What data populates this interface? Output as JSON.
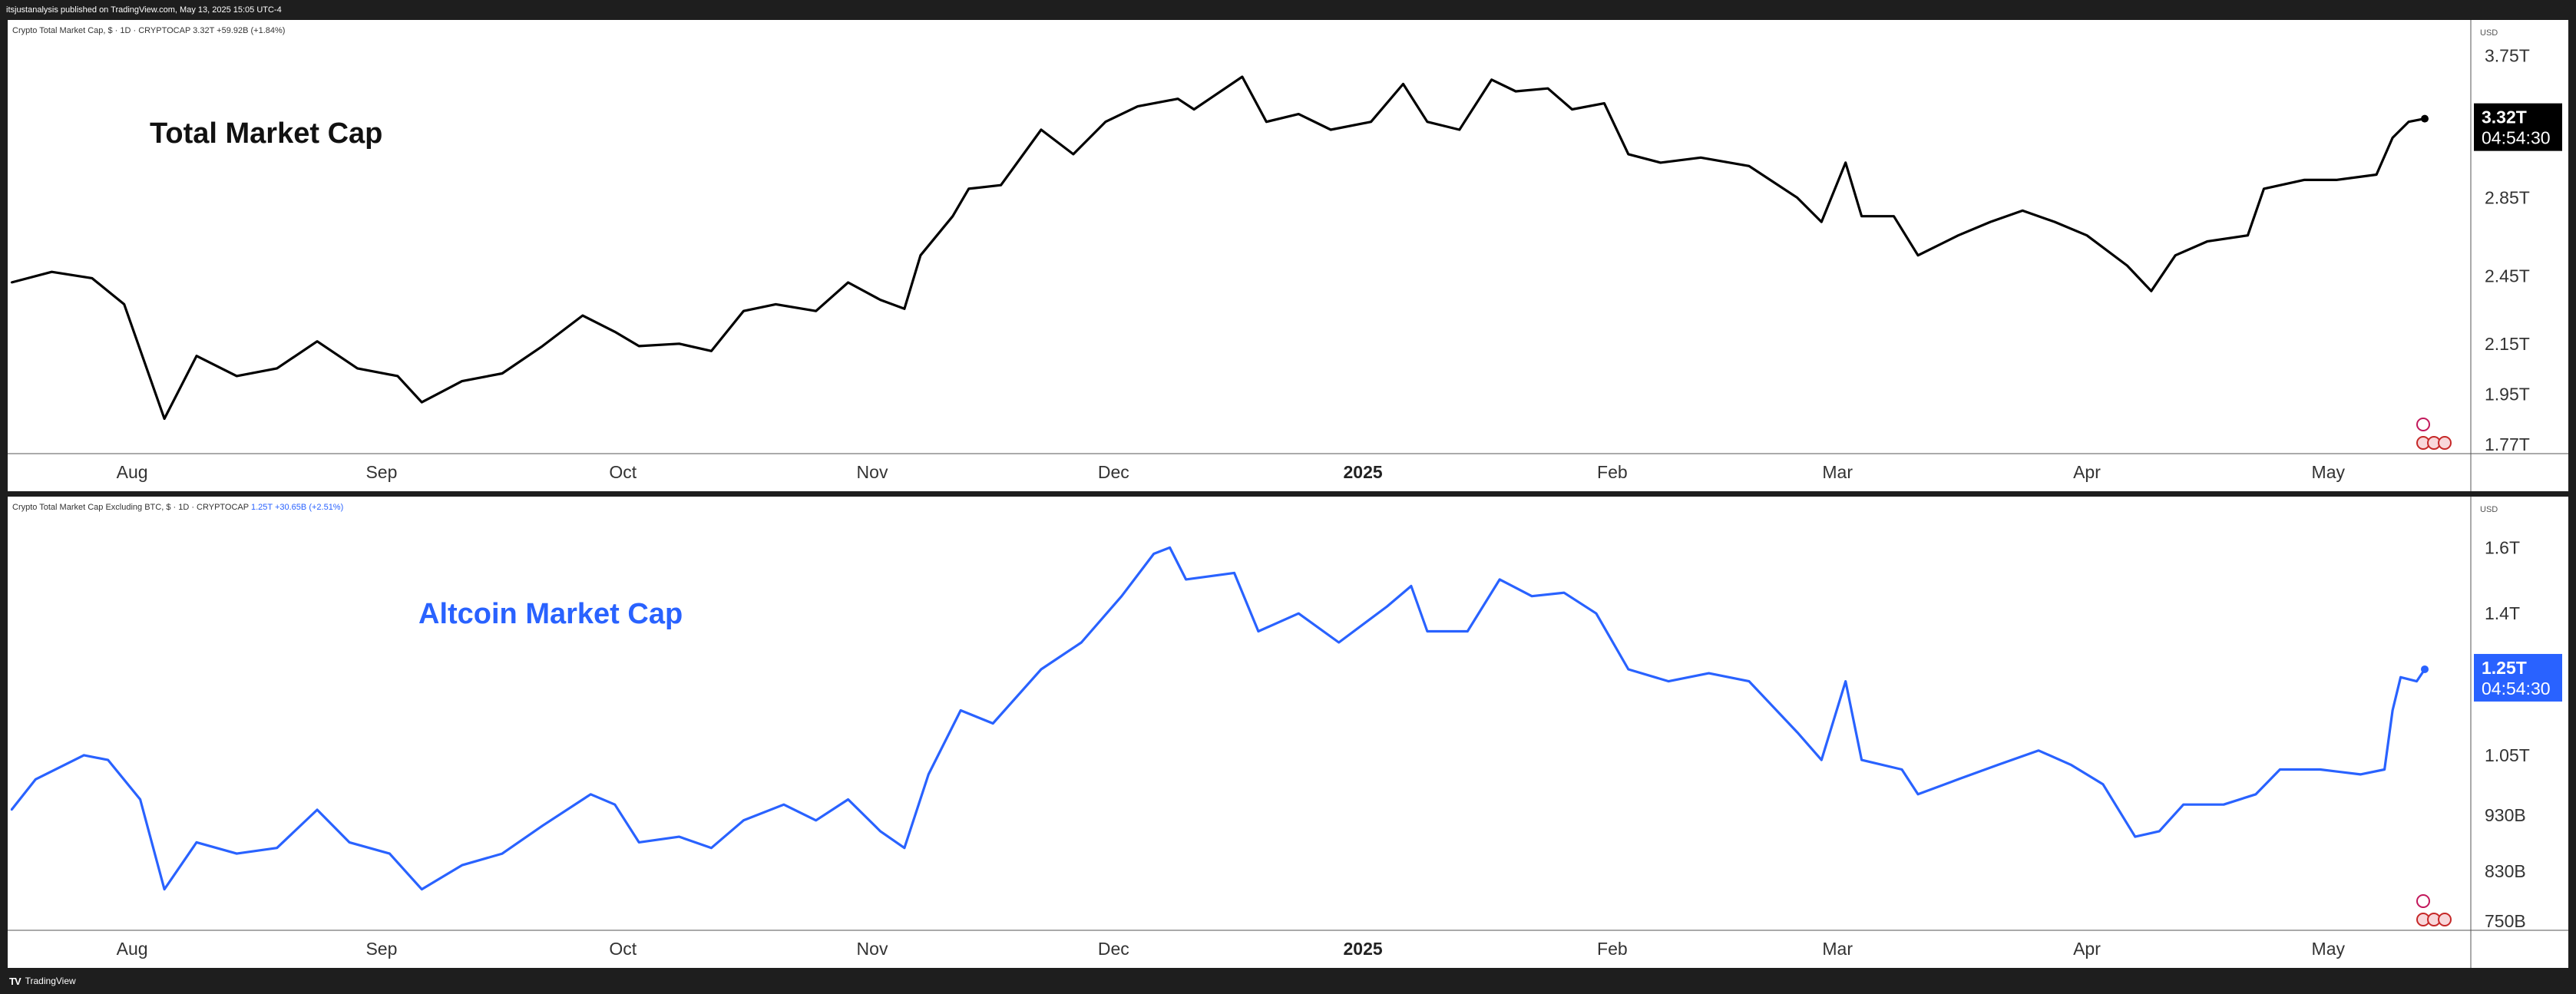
{
  "header": {
    "published_text": "itsjustanalysis published on TradingView.com, May 13, 2025 15:05 UTC-4"
  },
  "footer": {
    "brand": "TradingView",
    "logo_icon": "tradingview-logo-icon"
  },
  "colors": {
    "top_line": "#000000",
    "bottom_line": "#2962ff",
    "top_title": "#111111",
    "bottom_title": "#2962ff",
    "top_badge": "#000000",
    "bottom_badge": "#2962ff"
  },
  "panes": [
    {
      "legend": {
        "name": "Crypto Total Market Cap, $ · 1D · CRYPTOCAP",
        "value": "3.32T",
        "change": "+59.92B (+1.84%)"
      },
      "chart_title": "Total Market Cap",
      "currency": "USD",
      "badge": {
        "value": "3.32T",
        "countdown": "04:54:30"
      },
      "yaxis_ticks": [
        "3.75T",
        "2.85T",
        "2.45T",
        "2.15T",
        "1.95T",
        "1.77T"
      ],
      "xaxis_labels": [
        "Aug",
        "Sep",
        "Oct",
        "Nov",
        "Dec",
        "2025",
        "Feb",
        "Mar",
        "Apr",
        "May"
      ]
    },
    {
      "legend": {
        "name": "Crypto Total Market Cap Excluding BTC, $ · 1D · CRYPTOCAP",
        "value": "1.25T",
        "change": "+30.65B (+2.51%)"
      },
      "chart_title": "Altcoin Market Cap",
      "currency": "USD",
      "badge": {
        "value": "1.25T",
        "countdown": "04:54:30"
      },
      "yaxis_ticks": [
        "1.6T",
        "1.4T",
        "1.05T",
        "930B",
        "830B",
        "750B"
      ],
      "xaxis_labels": [
        "Aug",
        "Sep",
        "Oct",
        "Nov",
        "Dec",
        "2025",
        "Feb",
        "Mar",
        "Apr",
        "May"
      ]
    }
  ],
  "chart_data": [
    {
      "type": "line",
      "title": "Total Market Cap",
      "yscale": "log",
      "ylim": [
        1.77,
        3.9
      ],
      "x_start": "2024-07-17",
      "x_end": "2025-05-13",
      "xticks": [
        "2024-08-01",
        "2024-09-01",
        "2024-10-01",
        "2024-11-01",
        "2024-12-01",
        "2025-01-01",
        "2025-02-01",
        "2025-03-01",
        "2025-04-01",
        "2025-05-01"
      ],
      "yticks": [
        3.75,
        2.85,
        2.45,
        2.15,
        1.95,
        1.77
      ],
      "series": [
        {
          "color": "#000000",
          "points": [
            [
              "2024-07-17",
              2.42
            ],
            [
              "2024-07-22",
              2.47
            ],
            [
              "2024-07-27",
              2.44
            ],
            [
              "2024-07-31",
              2.32
            ],
            [
              "2024-08-05",
              1.86
            ],
            [
              "2024-08-09",
              2.1
            ],
            [
              "2024-08-14",
              2.02
            ],
            [
              "2024-08-19",
              2.05
            ],
            [
              "2024-08-24",
              2.16
            ],
            [
              "2024-08-29",
              2.05
            ],
            [
              "2024-09-03",
              2.02
            ],
            [
              "2024-09-06",
              1.92
            ],
            [
              "2024-09-11",
              2.0
            ],
            [
              "2024-09-16",
              2.03
            ],
            [
              "2024-09-21",
              2.14
            ],
            [
              "2024-09-26",
              2.27
            ],
            [
              "2024-09-30",
              2.2
            ],
            [
              "2024-10-03",
              2.14
            ],
            [
              "2024-10-08",
              2.15
            ],
            [
              "2024-10-12",
              2.12
            ],
            [
              "2024-10-16",
              2.29
            ],
            [
              "2024-10-20",
              2.32
            ],
            [
              "2024-10-25",
              2.29
            ],
            [
              "2024-10-29",
              2.42
            ],
            [
              "2024-11-02",
              2.34
            ],
            [
              "2024-11-05",
              2.3
            ],
            [
              "2024-11-07",
              2.55
            ],
            [
              "2024-11-11",
              2.75
            ],
            [
              "2024-11-13",
              2.9
            ],
            [
              "2024-11-17",
              2.92
            ],
            [
              "2024-11-22",
              3.25
            ],
            [
              "2024-11-26",
              3.1
            ],
            [
              "2024-11-30",
              3.3
            ],
            [
              "2024-12-04",
              3.4
            ],
            [
              "2024-12-09",
              3.45
            ],
            [
              "2024-12-11",
              3.38
            ],
            [
              "2024-12-17",
              3.6
            ],
            [
              "2024-12-20",
              3.3
            ],
            [
              "2024-12-24",
              3.35
            ],
            [
              "2024-12-28",
              3.25
            ],
            [
              "2025-01-02",
              3.3
            ],
            [
              "2025-01-06",
              3.55
            ],
            [
              "2025-01-09",
              3.3
            ],
            [
              "2025-01-13",
              3.25
            ],
            [
              "2025-01-17",
              3.58
            ],
            [
              "2025-01-20",
              3.5
            ],
            [
              "2025-01-24",
              3.52
            ],
            [
              "2025-01-27",
              3.38
            ],
            [
              "2025-01-31",
              3.42
            ],
            [
              "2025-02-03",
              3.1
            ],
            [
              "2025-02-07",
              3.05
            ],
            [
              "2025-02-12",
              3.08
            ],
            [
              "2025-02-18",
              3.03
            ],
            [
              "2025-02-24",
              2.85
            ],
            [
              "2025-02-27",
              2.72
            ],
            [
              "2025-03-02",
              3.05
            ],
            [
              "2025-03-04",
              2.75
            ],
            [
              "2025-03-08",
              2.75
            ],
            [
              "2025-03-11",
              2.55
            ],
            [
              "2025-03-16",
              2.65
            ],
            [
              "2025-03-20",
              2.72
            ],
            [
              "2025-03-24",
              2.78
            ],
            [
              "2025-03-28",
              2.72
            ],
            [
              "2025-04-01",
              2.65
            ],
            [
              "2025-04-06",
              2.5
            ],
            [
              "2025-04-09",
              2.38
            ],
            [
              "2025-04-12",
              2.55
            ],
            [
              "2025-04-16",
              2.62
            ],
            [
              "2025-04-21",
              2.65
            ],
            [
              "2025-04-23",
              2.9
            ],
            [
              "2025-04-28",
              2.95
            ],
            [
              "2025-05-02",
              2.95
            ],
            [
              "2025-05-07",
              2.98
            ],
            [
              "2025-05-09",
              3.2
            ],
            [
              "2025-05-11",
              3.3
            ],
            [
              "2025-05-13",
              3.32
            ]
          ]
        }
      ]
    },
    {
      "type": "line",
      "title": "Altcoin Market Cap",
      "yscale": "log",
      "ylim": [
        0.75,
        1.72
      ],
      "x_start": "2024-07-17",
      "x_end": "2025-05-13",
      "xticks": [
        "2024-08-01",
        "2024-09-01",
        "2024-10-01",
        "2024-11-01",
        "2024-12-01",
        "2025-01-01",
        "2025-02-01",
        "2025-03-01",
        "2025-04-01",
        "2025-05-01"
      ],
      "yticks": [
        1.6,
        1.4,
        1.05,
        0.93,
        0.83,
        0.75
      ],
      "series": [
        {
          "color": "#2962ff",
          "points": [
            [
              "2024-07-17",
              0.94
            ],
            [
              "2024-07-20",
              1.0
            ],
            [
              "2024-07-26",
              1.05
            ],
            [
              "2024-07-29",
              1.04
            ],
            [
              "2024-08-02",
              0.96
            ],
            [
              "2024-08-05",
              0.8
            ],
            [
              "2024-08-09",
              0.88
            ],
            [
              "2024-08-14",
              0.86
            ],
            [
              "2024-08-19",
              0.87
            ],
            [
              "2024-08-24",
              0.94
            ],
            [
              "2024-08-28",
              0.88
            ],
            [
              "2024-09-02",
              0.86
            ],
            [
              "2024-09-06",
              0.8
            ],
            [
              "2024-09-11",
              0.84
            ],
            [
              "2024-09-16",
              0.86
            ],
            [
              "2024-09-21",
              0.91
            ],
            [
              "2024-09-27",
              0.97
            ],
            [
              "2024-09-30",
              0.95
            ],
            [
              "2024-10-03",
              0.88
            ],
            [
              "2024-10-08",
              0.89
            ],
            [
              "2024-10-12",
              0.87
            ],
            [
              "2024-10-16",
              0.92
            ],
            [
              "2024-10-21",
              0.95
            ],
            [
              "2024-10-25",
              0.92
            ],
            [
              "2024-10-29",
              0.96
            ],
            [
              "2024-11-02",
              0.9
            ],
            [
              "2024-11-05",
              0.87
            ],
            [
              "2024-11-08",
              1.01
            ],
            [
              "2024-11-12",
              1.15
            ],
            [
              "2024-11-16",
              1.12
            ],
            [
              "2024-11-22",
              1.25
            ],
            [
              "2024-11-27",
              1.32
            ],
            [
              "2024-12-02",
              1.45
            ],
            [
              "2024-12-06",
              1.58
            ],
            [
              "2024-12-08",
              1.6
            ],
            [
              "2024-12-10",
              1.5
            ],
            [
              "2024-12-16",
              1.52
            ],
            [
              "2024-12-19",
              1.35
            ],
            [
              "2024-12-24",
              1.4
            ],
            [
              "2024-12-29",
              1.32
            ],
            [
              "2025-01-04",
              1.42
            ],
            [
              "2025-01-07",
              1.48
            ],
            [
              "2025-01-09",
              1.35
            ],
            [
              "2025-01-14",
              1.35
            ],
            [
              "2025-01-18",
              1.5
            ],
            [
              "2025-01-22",
              1.45
            ],
            [
              "2025-01-26",
              1.46
            ],
            [
              "2025-01-30",
              1.4
            ],
            [
              "2025-02-03",
              1.25
            ],
            [
              "2025-02-08",
              1.22
            ],
            [
              "2025-02-13",
              1.24
            ],
            [
              "2025-02-18",
              1.22
            ],
            [
              "2025-02-24",
              1.1
            ],
            [
              "2025-02-27",
              1.04
            ],
            [
              "2025-03-02",
              1.22
            ],
            [
              "2025-03-04",
              1.04
            ],
            [
              "2025-03-09",
              1.02
            ],
            [
              "2025-03-11",
              0.97
            ],
            [
              "2025-03-16",
              1.0
            ],
            [
              "2025-03-21",
              1.03
            ],
            [
              "2025-03-26",
              1.06
            ],
            [
              "2025-03-30",
              1.03
            ],
            [
              "2025-04-03",
              0.99
            ],
            [
              "2025-04-07",
              0.89
            ],
            [
              "2025-04-10",
              0.9
            ],
            [
              "2025-04-13",
              0.95
            ],
            [
              "2025-04-18",
              0.95
            ],
            [
              "2025-04-22",
              0.97
            ],
            [
              "2025-04-25",
              1.02
            ],
            [
              "2025-04-30",
              1.02
            ],
            [
              "2025-05-05",
              1.01
            ],
            [
              "2025-05-08",
              1.02
            ],
            [
              "2025-05-09",
              1.15
            ],
            [
              "2025-05-10",
              1.23
            ],
            [
              "2025-05-12",
              1.22
            ],
            [
              "2025-05-13",
              1.25
            ]
          ]
        }
      ]
    }
  ]
}
